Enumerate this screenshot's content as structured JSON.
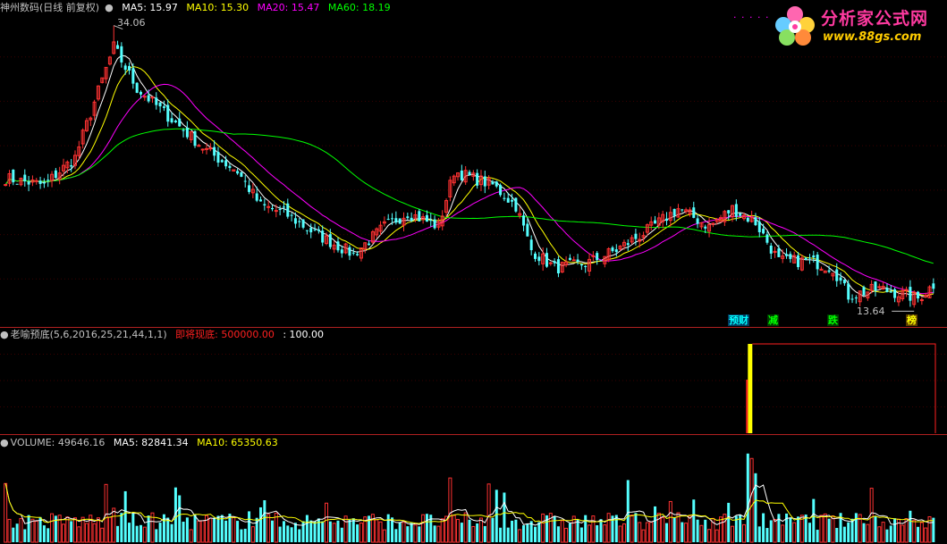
{
  "main_panel": {
    "title": "神州数码(日线 前复权)",
    "indicators": [
      {
        "label": "MA5: 15.97",
        "color": "#ffffff"
      },
      {
        "label": "MA10: 15.30",
        "color": "#ffff00"
      },
      {
        "label": "MA20: 15.47",
        "color": "#ff00ff"
      },
      {
        "label": "MA60: 18.19",
        "color": "#00ff00"
      }
    ],
    "high_label": "34.06",
    "low_label": "13.64",
    "signal_tags": [
      {
        "text": "预财",
        "color": "#00ffff"
      },
      {
        "text": "减",
        "color": "#00ff00"
      },
      {
        "text": "跌",
        "color": "#00ff00"
      },
      {
        "text": "榜",
        "color": "#ffff00"
      }
    ]
  },
  "indicator_panel": {
    "name": "老喻预底(5,6,2016,25,21,44,1,1)",
    "signal_label": "即将现底: 500000.00",
    "value_label": ": 100.00",
    "signal_color": "#ff2020"
  },
  "volume_panel": {
    "legend": [
      {
        "label": "VOLUME: 49646.16",
        "color": "#c0c0c0"
      },
      {
        "label": "MA5: 82841.34",
        "color": "#ffffff"
      },
      {
        "label": "MA10: 65350.63",
        "color": "#ffff00"
      }
    ]
  },
  "logo": {
    "title": "分析家公式网",
    "url": "www.88gs.com"
  },
  "colors": {
    "up": "#ff3232",
    "down": "#54ffff",
    "ma5": "#ffffff",
    "ma10": "#ffff00",
    "ma20": "#ff00ff",
    "ma60": "#00ff00",
    "separator": "#b02020"
  },
  "chart_data": {
    "type": "candlestick",
    "title": "神州数码(日线 前复权)",
    "price_range": [
      13.64,
      34.06
    ],
    "annotated_high": 34.06,
    "annotated_low": 13.64,
    "close_trend_keypoints": [
      [
        0,
        23.0
      ],
      [
        10,
        22.5
      ],
      [
        18,
        24.5
      ],
      [
        28,
        32.5
      ],
      [
        34,
        29.5
      ],
      [
        44,
        27.0
      ],
      [
        52,
        25.0
      ],
      [
        60,
        23.5
      ],
      [
        66,
        21.0
      ],
      [
        72,
        20.5
      ],
      [
        80,
        19.0
      ],
      [
        90,
        17.5
      ],
      [
        98,
        19.5
      ],
      [
        104,
        20.5
      ],
      [
        112,
        19.5
      ],
      [
        116,
        23.5
      ],
      [
        126,
        22.5
      ],
      [
        132,
        21.0
      ],
      [
        136,
        17.8
      ],
      [
        142,
        16.5
      ],
      [
        150,
        16.8
      ],
      [
        158,
        17.8
      ],
      [
        166,
        19.2
      ],
      [
        174,
        20.8
      ],
      [
        182,
        19.5
      ],
      [
        188,
        20.8
      ],
      [
        194,
        19.8
      ],
      [
        200,
        17.0
      ],
      [
        208,
        17.0
      ],
      [
        214,
        16.5
      ],
      [
        218,
        14.5
      ],
      [
        226,
        15.0
      ],
      [
        232,
        14.6
      ],
      [
        236,
        14.3
      ],
      [
        240,
        15.3
      ]
    ],
    "indicator_signal": {
      "name": "即将现底",
      "value": 500000.0,
      "fires_near_bar": 192
    },
    "volume_latest": 49646.16,
    "volume_ma5": 82841.34,
    "volume_ma10": 65350.63
  }
}
